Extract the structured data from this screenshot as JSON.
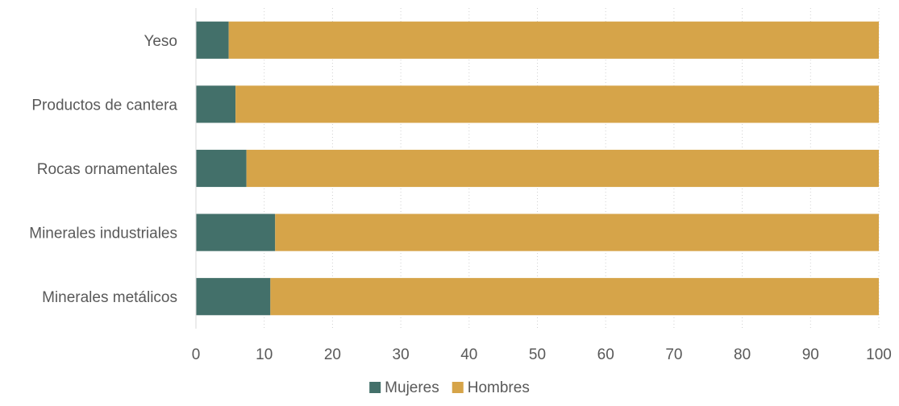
{
  "chart_data": {
    "type": "bar",
    "orientation": "horizontal",
    "stacked": true,
    "categories": [
      "Yeso",
      "Productos de cantera",
      "Rocas ornamentales",
      "Minerales industriales",
      "Minerales metálicos"
    ],
    "series": [
      {
        "name": "Mujeres",
        "color": "#43706A",
        "values": [
          4.8,
          5.8,
          7.4,
          11.6,
          10.9
        ]
      },
      {
        "name": "Hombres",
        "color": "#D6A449",
        "values": [
          95.2,
          94.2,
          92.6,
          88.4,
          89.1
        ]
      }
    ],
    "xlim": [
      0,
      100
    ],
    "xticks": [
      "0",
      "10",
      "20",
      "30",
      "40",
      "50",
      "60",
      "70",
      "80",
      "90",
      "100"
    ],
    "grid": "vertical dotted",
    "legend_position": "bottom"
  }
}
